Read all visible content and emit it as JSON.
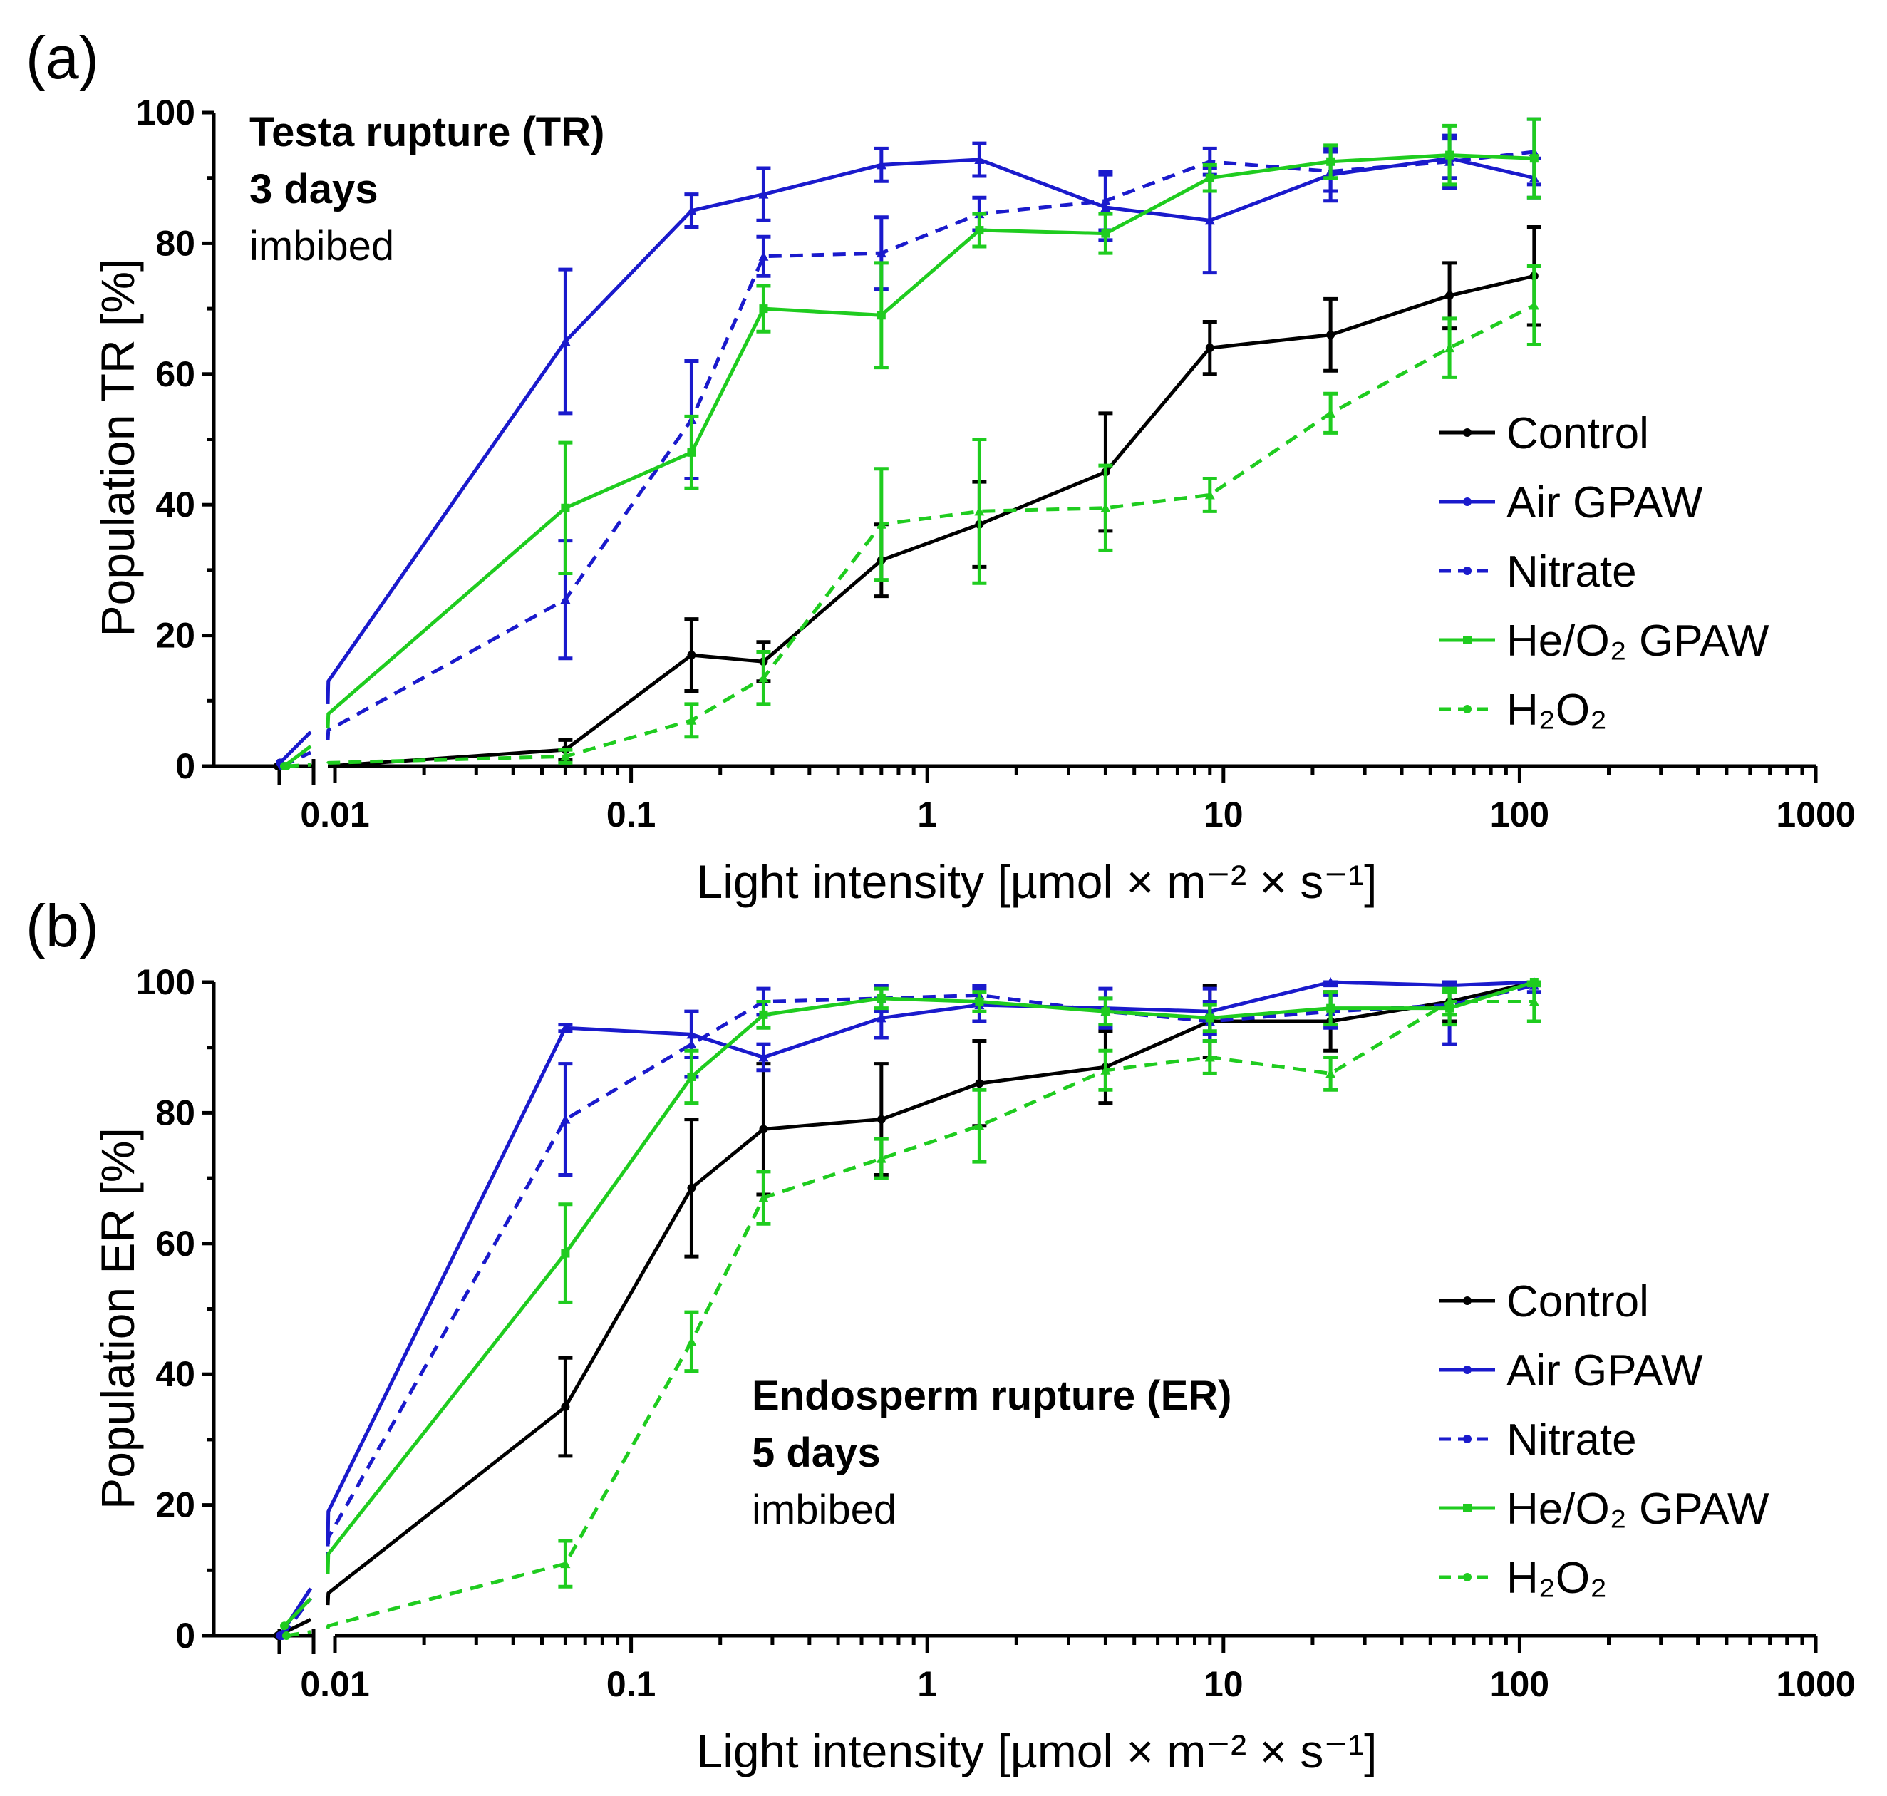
{
  "colors": {
    "control": "#000000",
    "air": "#1a1acc",
    "nitrate": "#1a1acc",
    "heo2": "#1fcc1f",
    "h2o2": "#1fcc1f"
  },
  "chart_data": [
    {
      "panel_label": "(a)",
      "type": "line",
      "xscale": "log",
      "xlim": [
        0.0045,
        1000
      ],
      "ylim": [
        0,
        100
      ],
      "xlabel": "Light intensity [µmol × m⁻² × s⁻¹]",
      "ylabel": "Population TR [%]",
      "xticks": [
        "0.01",
        "0.1",
        "1",
        "10",
        "100",
        "1000"
      ],
      "yticks": [
        "0",
        "20",
        "40",
        "60",
        "80",
        "100"
      ],
      "annotation": {
        "line1": "Testa rupture (TR)",
        "line2": "3 days",
        "line3": "imbibed"
      },
      "x_dark": 0.006,
      "x": [
        0.0095,
        0.06,
        0.16,
        0.28,
        0.7,
        1.5,
        4,
        9,
        23,
        58,
        112
      ],
      "series": [
        {
          "name": "Control",
          "key": "control",
          "dashed": false,
          "marker": "circle",
          "dark": 0,
          "values": [
            0,
            2.5,
            17,
            16,
            31.5,
            37,
            45,
            64,
            66,
            72,
            75
          ],
          "err": [
            0.8,
            1.5,
            5.5,
            3,
            5.5,
            6.5,
            9,
            4,
            5.5,
            5,
            7.5
          ]
        },
        {
          "name": "Air GPAW",
          "key": "air",
          "dashed": false,
          "marker": "triangle",
          "dark": 0.5,
          "values": [
            13,
            65,
            85,
            87.5,
            92,
            92.8,
            85.5,
            83.5,
            90.5,
            93,
            90
          ],
          "err": [
            0,
            11,
            2.5,
            4,
            2.5,
            2.5,
            5,
            8,
            4,
            3,
            3
          ]
        },
        {
          "name": "Nitrate",
          "key": "nitrate",
          "dashed": true,
          "marker": "triangle",
          "dark": 0,
          "values": [
            5.5,
            25.5,
            53,
            78,
            78.5,
            84.5,
            86.5,
            92.5,
            91,
            92.5,
            94
          ],
          "err": [
            0,
            9,
            9,
            3,
            5.5,
            2.5,
            4.5,
            2,
            3,
            4,
            5
          ]
        },
        {
          "name": "He/O₂ GPAW",
          "key": "heo2",
          "dashed": false,
          "marker": "square",
          "dark": 0,
          "values": [
            8,
            39.5,
            48,
            70,
            69,
            82,
            81.5,
            90,
            92.5,
            93.5,
            93
          ],
          "err": [
            0,
            10,
            5.5,
            3.5,
            8,
            2.5,
            3,
            2,
            2.5,
            4.5,
            6
          ]
        },
        {
          "name": "H₂O₂",
          "key": "h2o2",
          "dashed": true,
          "marker": "triangle",
          "dark": 0,
          "values": [
            0.5,
            1.5,
            7,
            13.5,
            37,
            39,
            39.5,
            41.5,
            54,
            64,
            70.5
          ],
          "err": [
            0,
            1,
            2.5,
            4,
            8.5,
            11,
            6.5,
            2.5,
            3,
            4.5,
            6
          ]
        }
      ],
      "legend": [
        "Control",
        "Air GPAW",
        "Nitrate",
        "He/O₂ GPAW",
        "H₂O₂"
      ]
    },
    {
      "panel_label": "(b)",
      "type": "line",
      "xscale": "log",
      "xlim": [
        0.0045,
        1000
      ],
      "ylim": [
        0,
        100
      ],
      "xlabel": "Light intensity [µmol × m⁻² × s⁻¹]",
      "ylabel": "Population ER [%]",
      "xticks": [
        "0.01",
        "0.1",
        "1",
        "10",
        "100",
        "1000"
      ],
      "yticks": [
        "0",
        "20",
        "40",
        "60",
        "80",
        "100"
      ],
      "annotation": {
        "line1": "Endosperm rupture (ER)",
        "line2": "5 days",
        "line3": "imbibed"
      },
      "x_dark": 0.006,
      "x": [
        0.0095,
        0.06,
        0.16,
        0.28,
        0.7,
        1.5,
        4,
        9,
        23,
        58,
        112
      ],
      "series": [
        {
          "name": "Control",
          "key": "control",
          "dashed": false,
          "marker": "circle",
          "dark": 0,
          "values": [
            6.5,
            35,
            68.5,
            77.5,
            79,
            84.5,
            87,
            94,
            94,
            97,
            100
          ],
          "err": [
            0,
            7.5,
            10.5,
            10,
            8.5,
            6.5,
            5.5,
            5.5,
            4.5,
            3,
            0
          ]
        },
        {
          "name": "Air GPAW",
          "key": "air",
          "dashed": false,
          "marker": "triangle",
          "dark": 0,
          "values": [
            19,
            93,
            92,
            88.5,
            94.5,
            96.5,
            96,
            95.5,
            100,
            99.5,
            100
          ],
          "err": [
            0,
            0.5,
            3.5,
            2,
            3,
            2.5,
            3,
            3.5,
            0.5,
            1,
            0.5
          ]
        },
        {
          "name": "Nitrate",
          "key": "nitrate",
          "dashed": true,
          "marker": "triangle",
          "dark": 0,
          "values": [
            15,
            79,
            90.5,
            97,
            97.5,
            98,
            95.5,
            94,
            95.5,
            96.5,
            99.5
          ],
          "err": [
            0,
            8.5,
            5,
            2,
            2,
            1.5,
            2,
            3,
            2.5,
            6,
            1
          ]
        },
        {
          "name": "He/O₂ GPAW",
          "key": "heo2",
          "dashed": false,
          "marker": "square",
          "dark": 1.5,
          "values": [
            12.5,
            58.5,
            85.5,
            95,
            97.5,
            97,
            95.5,
            94.5,
            96,
            96,
            100
          ],
          "err": [
            0,
            7.5,
            4,
            2,
            1.5,
            1.5,
            2,
            2,
            2.5,
            2.5,
            0.5
          ]
        },
        {
          "name": "H₂O₂",
          "key": "h2o2",
          "dashed": true,
          "marker": "triangle",
          "dark": 0,
          "values": [
            1.5,
            11,
            45,
            67,
            73,
            78,
            86.5,
            88.5,
            86,
            97,
            97
          ],
          "err": [
            0,
            3.5,
            4.5,
            4,
            3,
            5.5,
            3,
            2.5,
            2.5,
            2,
            3
          ]
        }
      ],
      "legend": [
        "Control",
        "Air GPAW",
        "Nitrate",
        "He/O₂ GPAW",
        "H₂O₂"
      ]
    }
  ]
}
